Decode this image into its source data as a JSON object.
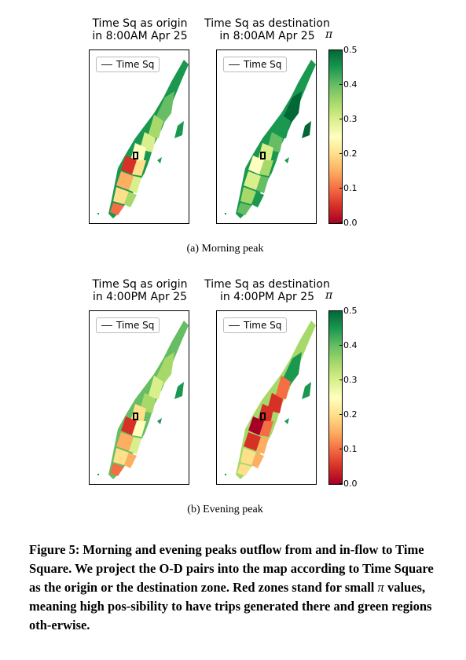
{
  "figure": {
    "rows": [
      {
        "panels": [
          {
            "title_line1": "Time Sq as origin",
            "title_line2": "in 8:00AM Apr 25",
            "legend": "Time Sq"
          },
          {
            "title_line1": "Time Sq as destination",
            "title_line2": "in 8:00AM Apr 25",
            "legend": "Time Sq"
          }
        ],
        "colorbar": {
          "symbol": "π",
          "ticks": [
            "0.5",
            "0.4",
            "0.3",
            "0.2",
            "0.1",
            "0.0"
          ]
        },
        "subcaption": "(a)  Morning peak"
      },
      {
        "panels": [
          {
            "title_line1": "Time Sq as origin",
            "title_line2": "in 4:00PM Apr 25",
            "legend": "Time Sq"
          },
          {
            "title_line1": "Time Sq as destination",
            "title_line2": "in 4:00PM Apr 25",
            "legend": "Time Sq"
          }
        ],
        "colorbar": {
          "symbol": "π",
          "ticks": [
            "0.5",
            "0.4",
            "0.3",
            "0.2",
            "0.1",
            "0.0"
          ]
        },
        "subcaption": "(b)  Evening peak"
      }
    ],
    "caption": {
      "part1": "Figure 5: Morning and evening peaks outflow from and in-flow to Time Square. We project the O-D pairs into the map according to Time Square as the origin or the destination zone. Red zones stand for small ",
      "pi": "π",
      "part2": " values, meaning high pos-sibility to have trips generated there and green regions oth-erwise."
    }
  }
}
